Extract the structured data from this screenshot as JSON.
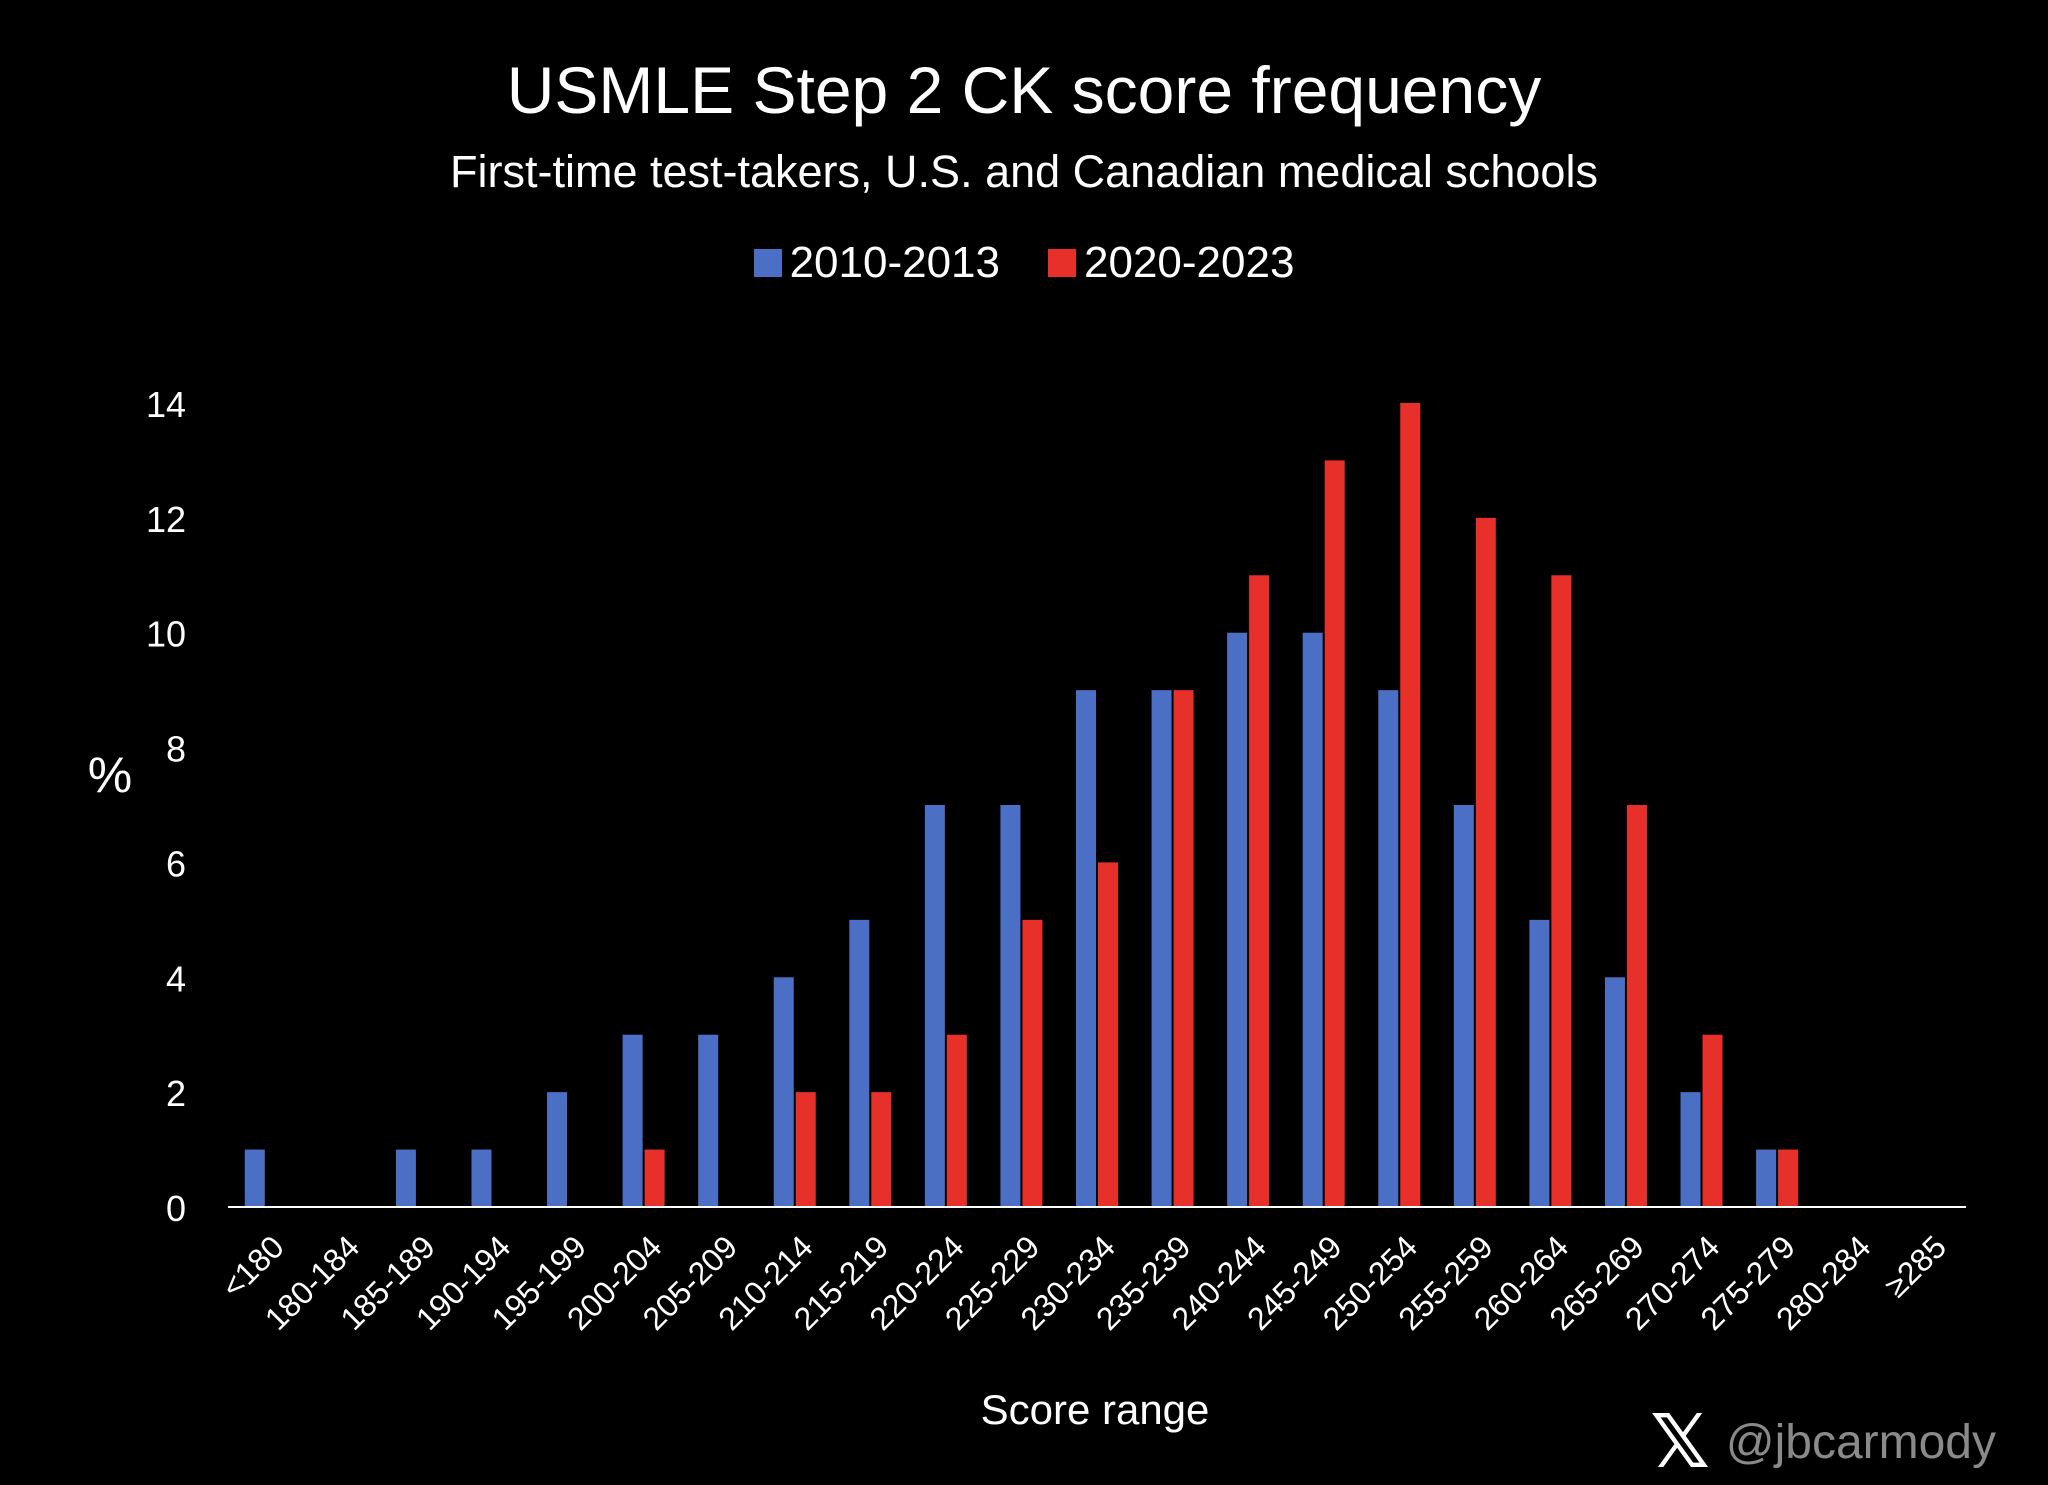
{
  "chart_data": {
    "type": "bar",
    "title": "USMLE Step 2 CK score frequency",
    "subtitle": "First-time test-takers, U.S. and Canadian medical schools",
    "xlabel": "Score range",
    "ylabel": "%",
    "ylim": [
      0,
      14
    ],
    "yticks": [
      "0",
      "2",
      "4",
      "6",
      "8",
      "10",
      "12",
      "14"
    ],
    "grid": false,
    "legend_position": "top-center",
    "categories": [
      "<180",
      "180-184",
      "185-189",
      "190-194",
      "195-199",
      "200-204",
      "205-209",
      "210-214",
      "215-219",
      "220-224",
      "225-229",
      "230-234",
      "235-239",
      "240-244",
      "245-249",
      "250-254",
      "255-259",
      "260-264",
      "265-269",
      "270-274",
      "275-279",
      "280-284",
      "≥285"
    ],
    "series": [
      {
        "name": "2010-2013",
        "color": "#4a6fc4",
        "values": [
          1,
          0,
          1,
          1,
          2,
          3,
          3,
          4,
          5,
          7,
          7,
          9,
          9,
          10,
          10,
          9,
          7,
          5,
          4,
          2,
          1,
          0,
          0
        ]
      },
      {
        "name": "2020-2023",
        "color": "#e8302a",
        "values": [
          0,
          0,
          0,
          0,
          0,
          1,
          0,
          2,
          2,
          3,
          5,
          6,
          9,
          11,
          13,
          14,
          12,
          11,
          7,
          3,
          1,
          0,
          0
        ]
      }
    ]
  },
  "credit": {
    "handle": "@jbcarmody",
    "logo": "x-logo-icon"
  }
}
